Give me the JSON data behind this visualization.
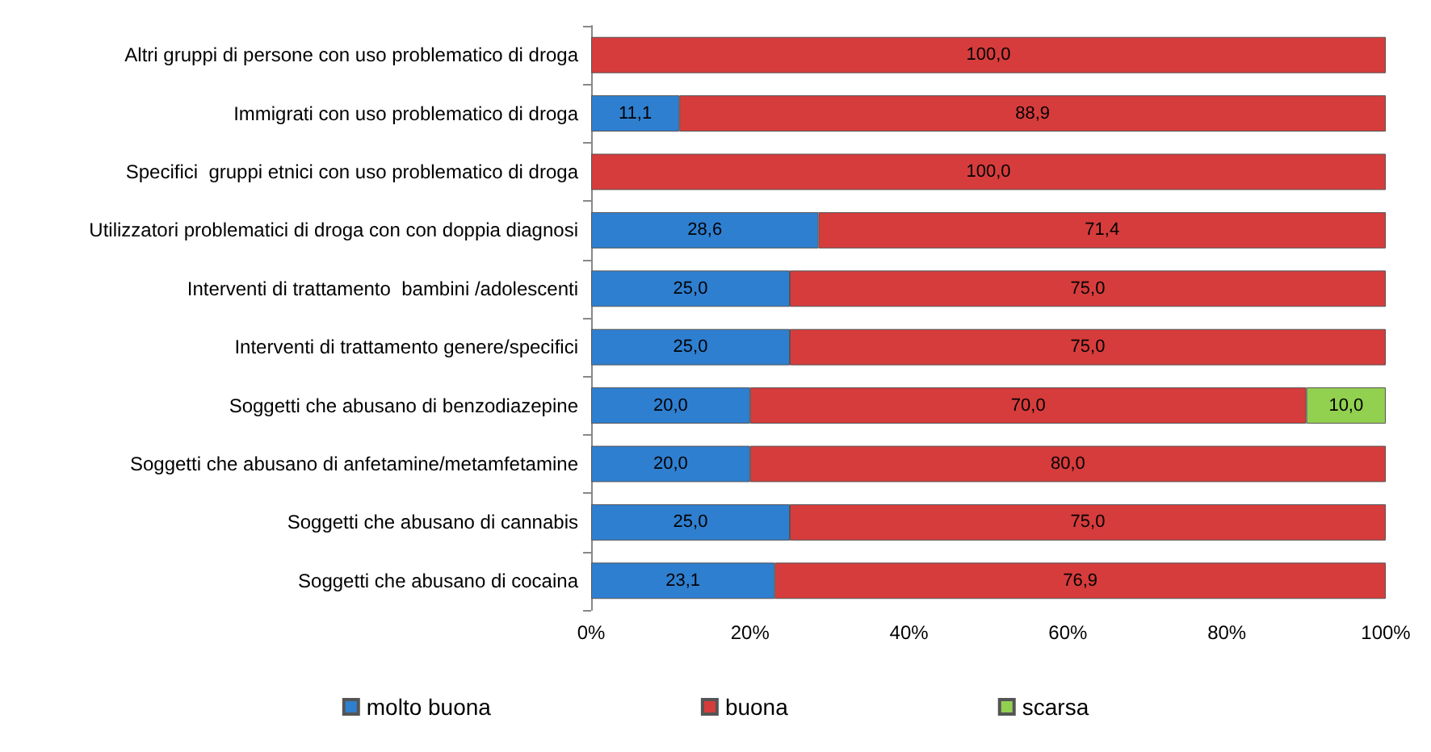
{
  "chart_data": {
    "type": "bar",
    "orientation": "horizontal",
    "stacked": true,
    "legend": "bottom",
    "grid": false,
    "categories": [
      "Altri gruppi di persone con uso problematico di droga",
      "Immigrati con uso problematico di droga",
      "Specifici  gruppi etnici con uso problematico di droga",
      "Utilizzatori problematici di droga con con doppia diagnosi",
      "Interventi di trattamento  bambini /adolescenti",
      "Interventi di trattamento genere/specifici",
      "Soggetti che abusano di benzodiazepine",
      "Soggetti che abusano di anfetamine/metamfetamine",
      "Soggetti che abusano di cannabis",
      "Soggetti che abusano di cocaina"
    ],
    "xlim": [
      0,
      100
    ],
    "xticks": [
      {
        "value": 0,
        "label": "0%"
      },
      {
        "value": 20,
        "label": "20%"
      },
      {
        "value": 40,
        "label": "40%"
      },
      {
        "value": 60,
        "label": "60%"
      },
      {
        "value": 80,
        "label": "80%"
      },
      {
        "value": 100,
        "label": "100%"
      }
    ],
    "series": [
      {
        "name": "molto buona",
        "color": "#2f7fd0",
        "values": [
          null,
          11.1,
          null,
          28.6,
          25.0,
          25.0,
          20.0,
          20.0,
          25.0,
          23.1
        ],
        "value_labels": [
          null,
          "11,1",
          null,
          "28,6",
          "25,0",
          "25,0",
          "20,0",
          "20,0",
          "25,0",
          "23,1"
        ]
      },
      {
        "name": "buona",
        "color": "#d63c3c",
        "values": [
          100.0,
          88.9,
          100.0,
          71.4,
          75.0,
          75.0,
          70.0,
          80.0,
          75.0,
          76.9
        ],
        "value_labels": [
          "100,0",
          "88,9",
          "100,0",
          "71,4",
          "75,0",
          "75,0",
          "70,0",
          "80,0",
          "75,0",
          "76,9"
        ]
      },
      {
        "name": "scarsa",
        "color": "#92d050",
        "values": [
          null,
          null,
          null,
          null,
          null,
          null,
          10.0,
          null,
          null,
          null
        ],
        "value_labels": [
          null,
          null,
          null,
          null,
          null,
          null,
          "10,0",
          null,
          null,
          null
        ]
      }
    ]
  }
}
